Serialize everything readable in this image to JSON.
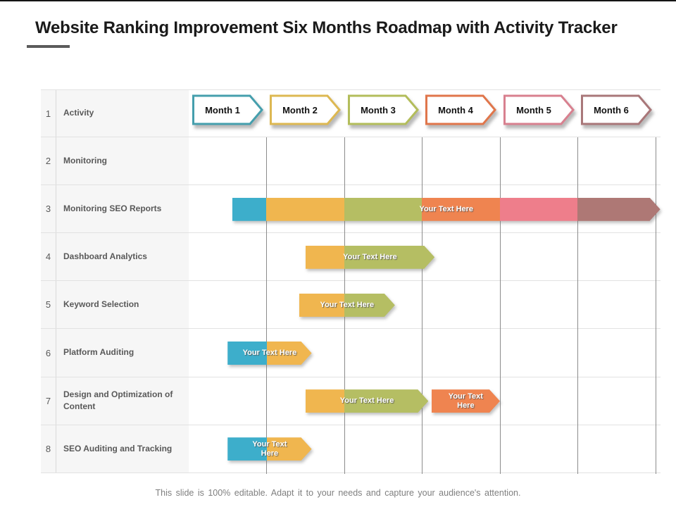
{
  "title": "Website Ranking Improvement Six Months Roadmap with Activity Tracker",
  "footer": "This slide is 100% editable. Adapt it to your needs and capture your audience's attention.",
  "months": [
    {
      "label": "Month 1",
      "color": "#459FAD"
    },
    {
      "label": "Month 2",
      "color": "#DDB852"
    },
    {
      "label": "Month 3",
      "color": "#B3BD5B"
    },
    {
      "label": "Month 4",
      "color": "#E0764B"
    },
    {
      "label": "Month 5",
      "color": "#D8808F"
    },
    {
      "label": "Month 6",
      "color": "#A97779"
    }
  ],
  "rows": [
    {
      "num": "1",
      "label": "Activity"
    },
    {
      "num": "2",
      "label": "Monitoring"
    },
    {
      "num": "3",
      "label": "Monitoring SEO Reports"
    },
    {
      "num": "4",
      "label": "Dashboard Analytics"
    },
    {
      "num": "5",
      "label": "Keyword Selection"
    },
    {
      "num": "6",
      "label": "Platform Auditing"
    },
    {
      "num": "7",
      "label": "Design and Optimization of Content"
    },
    {
      "num": "8",
      "label": "SEO Auditing and Tracking"
    }
  ],
  "palette": {
    "teal": "#3DAECB",
    "yellow": "#F0B64F",
    "olive": "#B5BE63",
    "orange": "#EF8450",
    "pink": "#EE7E8B",
    "mauve": "#AE7875"
  },
  "chart_data": {
    "type": "gantt",
    "unit": "months",
    "axis_range": [
      0,
      6
    ],
    "grid": true,
    "bars": [
      {
        "row": 3,
        "label": "Your Text Here",
        "two_line": false,
        "segments": [
          {
            "color": "teal",
            "from": 0.56,
            "to": 1.0
          },
          {
            "color": "yellow",
            "from": 1.0,
            "to": 2.0
          },
          {
            "color": "olive",
            "from": 2.0,
            "to": 3.0
          },
          {
            "color": "orange",
            "from": 3.0,
            "to": 4.0
          },
          {
            "color": "pink",
            "from": 4.0,
            "to": 5.0
          },
          {
            "color": "mauve",
            "from": 5.0,
            "to": 6.06
          }
        ]
      },
      {
        "row": 4,
        "label": "Your Text Here",
        "two_line": false,
        "segments": [
          {
            "color": "yellow",
            "from": 1.5,
            "to": 2.0
          },
          {
            "color": "olive",
            "from": 2.0,
            "to": 3.16
          }
        ]
      },
      {
        "row": 5,
        "label": "Your Text Here",
        "two_line": false,
        "segments": [
          {
            "color": "yellow",
            "from": 1.42,
            "to": 2.0
          },
          {
            "color": "olive",
            "from": 2.0,
            "to": 2.65
          }
        ]
      },
      {
        "row": 6,
        "label": "Your Text Here",
        "two_line": false,
        "segments": [
          {
            "color": "teal",
            "from": 0.5,
            "to": 1.0
          },
          {
            "color": "yellow",
            "from": 1.0,
            "to": 1.58
          }
        ]
      },
      {
        "row": 7,
        "label": "Your Text Here",
        "two_line": false,
        "segments": [
          {
            "color": "yellow",
            "from": 1.5,
            "to": 2.0
          },
          {
            "color": "olive",
            "from": 2.0,
            "to": 3.08
          }
        ]
      },
      {
        "row": 7,
        "label": "Your Text Here",
        "two_line": true,
        "segments": [
          {
            "color": "orange",
            "from": 3.12,
            "to": 4.0
          }
        ]
      },
      {
        "row": 8,
        "label": "Your Text Here",
        "two_line": true,
        "segments": [
          {
            "color": "teal",
            "from": 0.5,
            "to": 1.0
          },
          {
            "color": "yellow",
            "from": 1.0,
            "to": 1.58
          }
        ]
      }
    ]
  }
}
